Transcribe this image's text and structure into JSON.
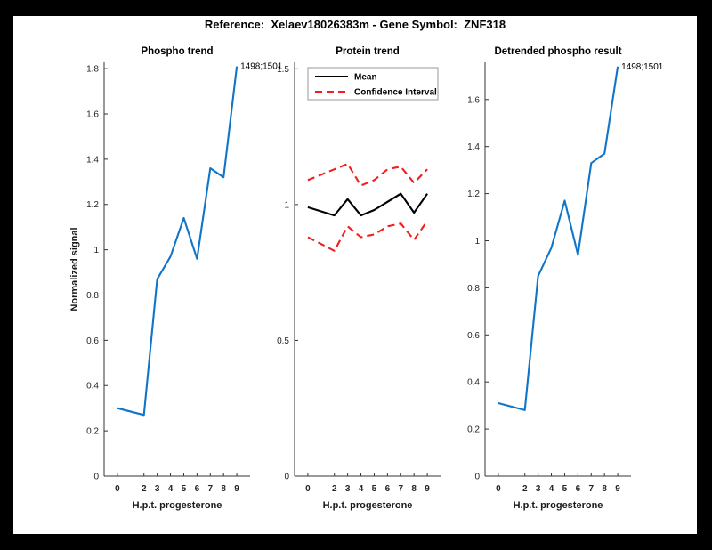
{
  "figure": {
    "title": "Reference:  Xelaev18026383m - Gene Symbol:  ZNF318"
  },
  "colors": {
    "blue": "#1075c9",
    "red": "#f01e1e",
    "black": "#000000",
    "axis": "#333333",
    "tick_label": "#262626",
    "background": "#000000",
    "canvas": "#ffffff",
    "legend_border": "#999999"
  },
  "chart_data": [
    {
      "id": "phospho-trend-chart",
      "type": "line",
      "title": "Phospho trend",
      "xlabel": "H.p.t. progesterone",
      "ylabel": "Normalized signal",
      "x": [
        0,
        2,
        3,
        4,
        5,
        6,
        7,
        8,
        9
      ],
      "xtick_labels": [
        "0",
        "2",
        "3",
        "4",
        "5",
        "6",
        "7",
        "8",
        "9"
      ],
      "xlim": [
        -1,
        10
      ],
      "ylim": [
        0,
        1.828
      ],
      "yticks": [
        0,
        0.2,
        0.4,
        0.6,
        0.8,
        1,
        1.2,
        1.4,
        1.6,
        1.8
      ],
      "ytick_labels": [
        "0",
        "0.2",
        "0.4",
        "0.6",
        "0.8",
        "1",
        "1.2",
        "1.4",
        "1.6",
        "1.8"
      ],
      "grid": false,
      "series": [
        {
          "name": "phospho-signal",
          "color": "blue",
          "dash": "solid",
          "values": [
            0.3,
            0.27,
            0.87,
            0.97,
            1.14,
            0.96,
            1.36,
            1.32,
            1.81
          ]
        }
      ],
      "annotation": {
        "text": "1498;1501",
        "x": 9,
        "y": 1.81
      }
    },
    {
      "id": "protein-trend-chart",
      "type": "line",
      "title": "Protein trend",
      "xlabel": "H.p.t. progesterone",
      "ylabel": "",
      "x": [
        0,
        2,
        3,
        4,
        5,
        6,
        7,
        8,
        9
      ],
      "xtick_labels": [
        "0",
        "2",
        "3",
        "4",
        "5",
        "6",
        "7",
        "8",
        "9"
      ],
      "xlim": [
        -1,
        10
      ],
      "ylim": [
        0,
        1.524
      ],
      "yticks": [
        0,
        0.5,
        1,
        1.5
      ],
      "ytick_labels": [
        "0",
        "0.5",
        "1",
        "1.5"
      ],
      "grid": false,
      "series": [
        {
          "name": "mean",
          "color": "black",
          "dash": "solid",
          "values": [
            0.99,
            0.96,
            1.02,
            0.96,
            0.98,
            1.01,
            1.04,
            0.97,
            1.04
          ]
        },
        {
          "name": "confidence-interval-upper",
          "color": "red",
          "dash": "dashed",
          "values": [
            1.09,
            1.13,
            1.15,
            1.07,
            1.09,
            1.13,
            1.14,
            1.08,
            1.13
          ]
        },
        {
          "name": "confidence-interval-lower",
          "color": "red",
          "dash": "dashed",
          "values": [
            0.88,
            0.83,
            0.92,
            0.88,
            0.89,
            0.92,
            0.93,
            0.87,
            0.94
          ]
        }
      ],
      "legend": {
        "position": "upper-left",
        "entries": [
          {
            "label": "Mean",
            "color": "black",
            "dash": "solid"
          },
          {
            "label": "Confidence Interval",
            "color": "red",
            "dash": "dashed"
          }
        ]
      }
    },
    {
      "id": "detrended-phospho-chart",
      "type": "line",
      "title": "Detrended phospho result",
      "xlabel": "H.p.t. progesterone",
      "ylabel": "",
      "x": [
        0,
        2,
        3,
        4,
        5,
        6,
        7,
        8,
        9
      ],
      "xtick_labels": [
        "0",
        "2",
        "3",
        "4",
        "5",
        "6",
        "7",
        "8",
        "9"
      ],
      "xlim": [
        -1,
        10
      ],
      "ylim": [
        0,
        1.758
      ],
      "yticks": [
        0,
        0.2,
        0.4,
        0.6,
        0.8,
        1,
        1.2,
        1.4,
        1.6
      ],
      "ytick_labels": [
        "0",
        "0.2",
        "0.4",
        "0.6",
        "0.8",
        "1",
        "1.2",
        "1.4",
        "1.6"
      ],
      "grid": false,
      "series": [
        {
          "name": "detrended-phospho-signal",
          "color": "blue",
          "dash": "solid",
          "values": [
            0.31,
            0.28,
            0.85,
            0.97,
            1.17,
            0.94,
            1.33,
            1.37,
            1.74
          ]
        }
      ],
      "annotation": {
        "text": "1498;1501",
        "x": 9,
        "y": 1.74
      }
    }
  ]
}
